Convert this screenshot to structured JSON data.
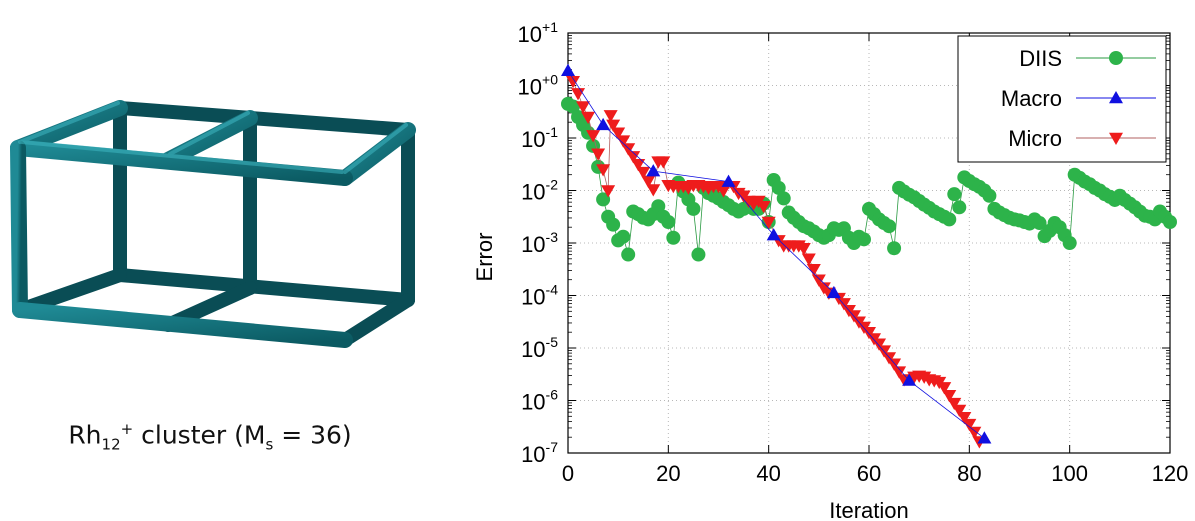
{
  "caption": {
    "element": "Rh",
    "sub1": "12",
    "sup1": "+",
    "word": " cluster (M",
    "sub2": "s",
    "tail": " = 36)"
  },
  "chart_data": {
    "type": "scatter",
    "xlabel": "Iteration",
    "ylabel": "Error",
    "y_scale": "log",
    "xlim": [
      0,
      120
    ],
    "ylim_exponents": [
      -7,
      1
    ],
    "x_ticks": [
      "0",
      "20",
      "40",
      "60",
      "80",
      "100",
      "120"
    ],
    "y_ticks": [
      {
        "base": "10",
        "exp": "-7",
        "value": -7
      },
      {
        "base": "10",
        "exp": "-6",
        "value": -6
      },
      {
        "base": "10",
        "exp": "-5",
        "value": -5
      },
      {
        "base": "10",
        "exp": "-4",
        "value": -4
      },
      {
        "base": "10",
        "exp": "-3",
        "value": -3
      },
      {
        "base": "10",
        "exp": "-2",
        "value": -2
      },
      {
        "base": "10",
        "exp": "-1",
        "value": -1
      },
      {
        "base": "10",
        "exp": "+0",
        "value": 0
      },
      {
        "base": "10",
        "exp": "+1",
        "value": 1
      }
    ],
    "grid": true,
    "legend_position": "top-right",
    "series": [
      {
        "name": "DIIS",
        "color": "#2db34a",
        "line_color": "#2a9a42",
        "marker": "circle",
        "log10_error": true,
        "points": [
          [
            0,
            -0.35
          ],
          [
            1,
            -0.4
          ],
          [
            2,
            -0.6
          ],
          [
            3,
            -0.75
          ],
          [
            4,
            -0.9
          ],
          [
            5,
            -1.15
          ],
          [
            6,
            -1.55
          ],
          [
            7,
            -2.17
          ],
          [
            8,
            -2.5
          ],
          [
            9,
            -2.65
          ],
          [
            10,
            -2.95
          ],
          [
            11,
            -2.88
          ],
          [
            12,
            -3.22
          ],
          [
            13,
            -2.4
          ],
          [
            14,
            -2.45
          ],
          [
            15,
            -2.52
          ],
          [
            16,
            -2.55
          ],
          [
            17,
            -2.45
          ],
          [
            18,
            -2.3
          ],
          [
            19,
            -2.5
          ],
          [
            20,
            -2.6
          ],
          [
            21,
            -2.9
          ],
          [
            22,
            -1.85
          ],
          [
            23,
            -2.02
          ],
          [
            24,
            -2.17
          ],
          [
            25,
            -2.35
          ],
          [
            26,
            -3.22
          ],
          [
            27,
            -1.95
          ],
          [
            28,
            -2.05
          ],
          [
            29,
            -2.1
          ],
          [
            30,
            -2.15
          ],
          [
            31,
            -2.22
          ],
          [
            32,
            -2.28
          ],
          [
            33,
            -2.35
          ],
          [
            34,
            -2.4
          ],
          [
            35,
            -2.35
          ],
          [
            36,
            -2.3
          ],
          [
            37,
            -2.35
          ],
          [
            38,
            -2.35
          ],
          [
            39,
            -2.25
          ],
          [
            40,
            -2.6
          ],
          [
            41,
            -1.8
          ],
          [
            42,
            -1.95
          ],
          [
            43,
            -2.15
          ],
          [
            44,
            -2.42
          ],
          [
            45,
            -2.52
          ],
          [
            46,
            -2.6
          ],
          [
            47,
            -2.68
          ],
          [
            48,
            -2.72
          ],
          [
            49,
            -2.78
          ],
          [
            50,
            -2.85
          ],
          [
            51,
            -2.9
          ],
          [
            52,
            -2.85
          ],
          [
            53,
            -2.72
          ],
          [
            54,
            -2.75
          ],
          [
            55,
            -2.72
          ],
          [
            56,
            -2.9
          ],
          [
            57,
            -3.0
          ],
          [
            58,
            -2.88
          ],
          [
            59,
            -2.93
          ],
          [
            60,
            -2.35
          ],
          [
            61,
            -2.45
          ],
          [
            62,
            -2.55
          ],
          [
            63,
            -2.62
          ],
          [
            64,
            -2.68
          ],
          [
            65,
            -3.1
          ],
          [
            66,
            -1.95
          ],
          [
            67,
            -2.02
          ],
          [
            68,
            -2.08
          ],
          [
            69,
            -2.13
          ],
          [
            70,
            -2.2
          ],
          [
            71,
            -2.27
          ],
          [
            72,
            -2.33
          ],
          [
            73,
            -2.4
          ],
          [
            74,
            -2.45
          ],
          [
            75,
            -2.5
          ],
          [
            76,
            -2.55
          ],
          [
            77,
            -2.07
          ],
          [
            78,
            -2.32
          ],
          [
            79,
            -1.75
          ],
          [
            80,
            -1.82
          ],
          [
            81,
            -1.88
          ],
          [
            82,
            -1.93
          ],
          [
            83,
            -2.0
          ],
          [
            84,
            -2.1
          ],
          [
            85,
            -2.35
          ],
          [
            86,
            -2.42
          ],
          [
            87,
            -2.47
          ],
          [
            88,
            -2.52
          ],
          [
            89,
            -2.55
          ],
          [
            90,
            -2.57
          ],
          [
            91,
            -2.6
          ],
          [
            92,
            -2.63
          ],
          [
            93,
            -2.55
          ],
          [
            94,
            -2.62
          ],
          [
            95,
            -2.87
          ],
          [
            96,
            -2.77
          ],
          [
            97,
            -2.62
          ],
          [
            98,
            -2.7
          ],
          [
            99,
            -2.85
          ],
          [
            100,
            -3.0
          ],
          [
            101,
            -1.7
          ],
          [
            102,
            -1.76
          ],
          [
            103,
            -1.83
          ],
          [
            104,
            -1.88
          ],
          [
            105,
            -1.95
          ],
          [
            106,
            -2.0
          ],
          [
            107,
            -2.07
          ],
          [
            108,
            -2.12
          ],
          [
            109,
            -2.18
          ],
          [
            110,
            -2.1
          ],
          [
            111,
            -2.18
          ],
          [
            112,
            -2.25
          ],
          [
            113,
            -2.32
          ],
          [
            114,
            -2.4
          ],
          [
            115,
            -2.48
          ],
          [
            116,
            -2.5
          ],
          [
            117,
            -2.55
          ],
          [
            118,
            -2.4
          ],
          [
            119,
            -2.5
          ],
          [
            120,
            -2.6
          ]
        ]
      },
      {
        "name": "Macro",
        "color": "#1010e0",
        "line_color": "#1010e0",
        "marker": "triangle-up",
        "log10_error": true,
        "points": [
          [
            0,
            0.28
          ],
          [
            7,
            -0.75
          ],
          [
            17,
            -1.63
          ],
          [
            32,
            -1.83
          ],
          [
            41,
            -2.85
          ],
          [
            53,
            -3.95
          ],
          [
            68,
            -5.62
          ],
          [
            83,
            -6.72
          ]
        ]
      },
      {
        "name": "Micro",
        "color": "#ee1c1c",
        "line_color": "#b06060",
        "marker": "triangle-down",
        "log10_error": true,
        "points": [
          [
            1,
            0.08
          ],
          [
            2,
            -0.15
          ],
          [
            3,
            -0.4
          ],
          [
            4,
            -0.6
          ],
          [
            5,
            -0.95
          ],
          [
            6,
            -1.3
          ],
          [
            7,
            -1.6
          ],
          [
            8,
            -2.0
          ],
          [
            8.5,
            -0.57
          ],
          [
            9,
            -0.75
          ],
          [
            10,
            -0.9
          ],
          [
            11,
            -1.05
          ],
          [
            12,
            -1.2
          ],
          [
            13,
            -1.35
          ],
          [
            14,
            -1.5
          ],
          [
            15,
            -1.65
          ],
          [
            16,
            -1.82
          ],
          [
            17,
            -1.98
          ],
          [
            18,
            -1.45
          ],
          [
            19,
            -1.45
          ],
          [
            20,
            -1.9
          ],
          [
            21,
            -1.92
          ],
          [
            22,
            -1.92
          ],
          [
            23,
            -1.92
          ],
          [
            24,
            -1.95
          ],
          [
            25,
            -1.9
          ],
          [
            26,
            -1.9
          ],
          [
            27,
            -1.92
          ],
          [
            28,
            -1.95
          ],
          [
            29,
            -1.92
          ],
          [
            30,
            -1.92
          ],
          [
            31,
            -2.0
          ],
          [
            33,
            -1.92
          ],
          [
            34,
            -2.05
          ],
          [
            35,
            -2.1
          ],
          [
            36,
            -2.2
          ],
          [
            37,
            -2.25
          ],
          [
            38,
            -2.2
          ],
          [
            39,
            -2.3
          ],
          [
            40,
            -2.6
          ],
          [
            42,
            -2.95
          ],
          [
            43,
            -3.05
          ],
          [
            44,
            -3.05
          ],
          [
            45,
            -3.05
          ],
          [
            46,
            -3.05
          ],
          [
            47,
            -3.1
          ],
          [
            48,
            -3.3
          ],
          [
            49,
            -3.5
          ],
          [
            50,
            -3.7
          ],
          [
            51,
            -3.85
          ],
          [
            52,
            -3.95
          ],
          [
            54,
            -4.05
          ],
          [
            55,
            -4.15
          ],
          [
            56,
            -4.28
          ],
          [
            57,
            -4.38
          ],
          [
            58,
            -4.5
          ],
          [
            59,
            -4.6
          ],
          [
            60,
            -4.7
          ],
          [
            61,
            -4.82
          ],
          [
            62,
            -4.92
          ],
          [
            63,
            -5.05
          ],
          [
            64,
            -5.18
          ],
          [
            65,
            -5.3
          ],
          [
            66,
            -5.45
          ],
          [
            67,
            -5.6
          ],
          [
            69,
            -5.55
          ],
          [
            70,
            -5.53
          ],
          [
            71,
            -5.55
          ],
          [
            72,
            -5.6
          ],
          [
            73,
            -5.62
          ],
          [
            74,
            -5.65
          ],
          [
            75,
            -5.75
          ],
          [
            76,
            -5.9
          ],
          [
            77,
            -6.05
          ],
          [
            78,
            -6.18
          ],
          [
            79,
            -6.32
          ],
          [
            80,
            -6.45
          ],
          [
            81,
            -6.6
          ],
          [
            82,
            -6.78
          ]
        ]
      }
    ]
  }
}
